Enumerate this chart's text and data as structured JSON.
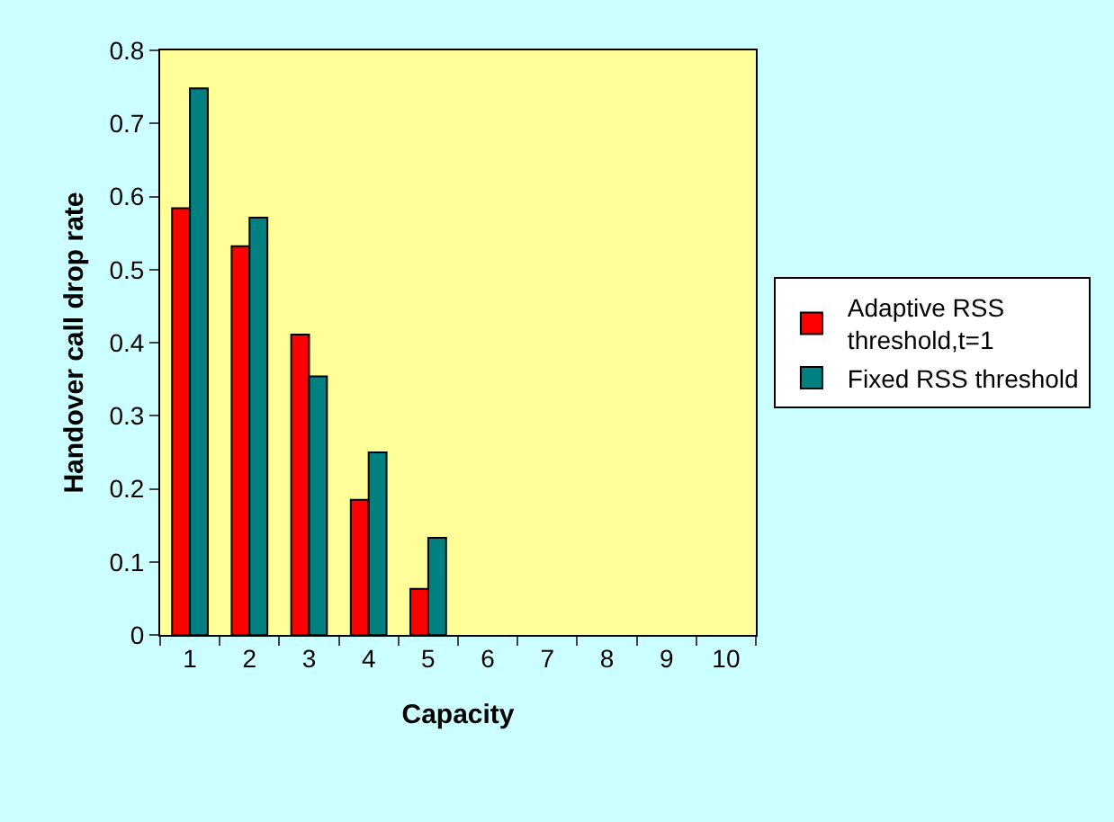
{
  "chart_data": {
    "type": "bar",
    "xlabel": "Capacity",
    "ylabel": "Handover call drop rate",
    "categories": [
      "1",
      "2",
      "3",
      "4",
      "5",
      "6",
      "7",
      "8",
      "9",
      "10"
    ],
    "series": [
      {
        "name": "Adaptive RSS threshold,t=1",
        "color": "#ff0000",
        "values": [
          0.584,
          0.532,
          0.411,
          0.185,
          0.063,
          null,
          null,
          null,
          null,
          null
        ]
      },
      {
        "name": "Fixed RSS threshold",
        "color": "#008080",
        "values": [
          0.748,
          0.571,
          0.354,
          0.25,
          0.133,
          null,
          null,
          null,
          null,
          null
        ]
      }
    ],
    "ylim": [
      0,
      0.8
    ],
    "yticks": [
      0,
      0.1,
      0.2,
      0.3,
      0.4,
      0.5,
      0.6,
      0.7,
      0.8
    ],
    "grid": false,
    "legend": "right"
  }
}
